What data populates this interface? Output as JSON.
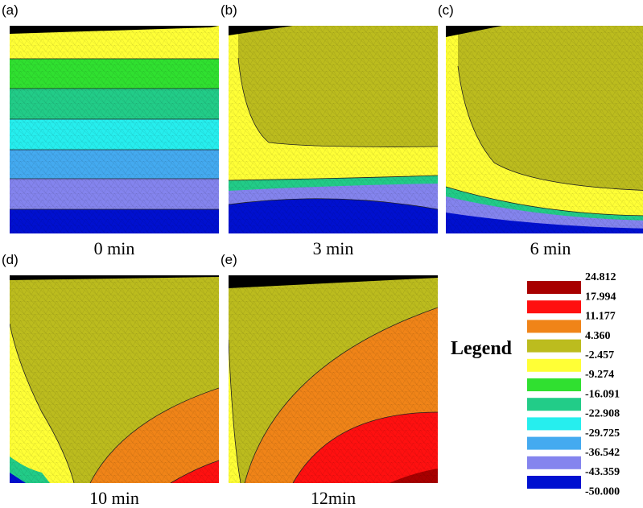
{
  "panels": [
    {
      "label": "(a)",
      "caption": "0 min"
    },
    {
      "label": "(b)",
      "caption": "3 min"
    },
    {
      "label": "(c)",
      "caption": "6 min"
    },
    {
      "label": "(d)",
      "caption": "10 min"
    },
    {
      "label": "(e)",
      "caption": "12min"
    }
  ],
  "legend": {
    "title": "Legend",
    "values": [
      "24.812",
      "17.994",
      "11.177",
      "4.360",
      "-2.457",
      "-9.274",
      "-16.091",
      "-22.908",
      "-29.725",
      "-36.542",
      "-43.359",
      "-50.000"
    ],
    "colors": [
      "#a80000",
      "#ff1010",
      "#f08418",
      "#bcbc1e",
      "#ffff36",
      "#30e030",
      "#22cc88",
      "#26eeee",
      "#44aaf0",
      "#8484ee",
      "#0010d0"
    ]
  }
}
